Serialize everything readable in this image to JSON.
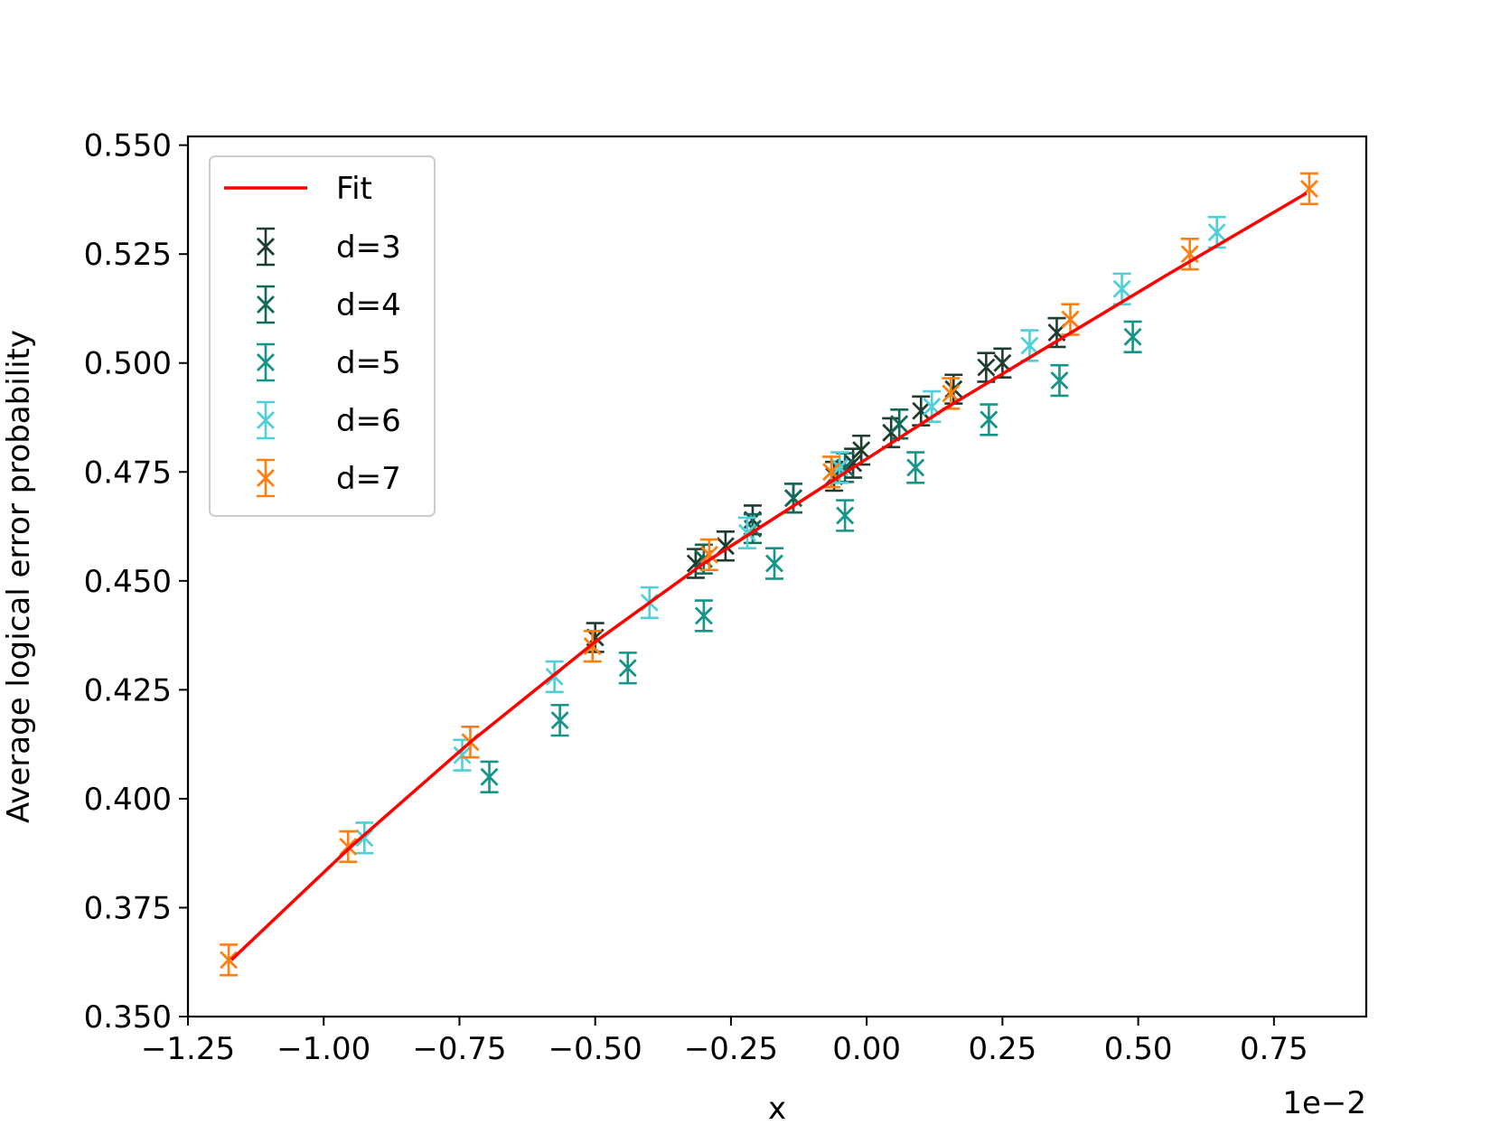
{
  "chart_data": {
    "type": "scatter",
    "xlabel": "x",
    "ylabel": "Average logical error probability",
    "x_offset_label": "1e−2",
    "xlim": [
      -1.25,
      0.92
    ],
    "ylim": [
      0.35,
      0.552
    ],
    "xticks": [
      -1.25,
      -1.0,
      -0.75,
      -0.5,
      -0.25,
      0.0,
      0.25,
      0.5,
      0.75
    ],
    "xtick_labels": [
      "−1.25",
      "−1.00",
      "−0.75",
      "−0.50",
      "−0.25",
      "0.00",
      "0.25",
      "0.50",
      "0.75"
    ],
    "yticks": [
      0.35,
      0.375,
      0.4,
      0.425,
      0.45,
      0.475,
      0.5,
      0.525,
      0.55
    ],
    "ytick_labels": [
      "0.350",
      "0.375",
      "0.400",
      "0.425",
      "0.450",
      "0.475",
      "0.500",
      "0.525",
      "0.550"
    ],
    "grid": false,
    "legend_position": "top-left",
    "fit": {
      "name": "Fit",
      "color": "#ff0000",
      "x": [
        -1.17,
        -0.95,
        -0.73,
        -0.5,
        -0.3,
        -0.1,
        0.0,
        0.15,
        0.35,
        0.55,
        0.81
      ],
      "y": [
        0.363,
        0.389,
        0.413,
        0.436,
        0.454,
        0.47,
        0.478,
        0.49,
        0.505,
        0.52,
        0.539
      ]
    },
    "series": [
      {
        "name": "d=3",
        "color": "#1f3d2f",
        "err": 0.0033,
        "x": [
          -0.5,
          -0.315,
          -0.26,
          -0.21,
          -0.135,
          -0.06,
          -0.025,
          -0.01,
          0.045,
          0.1,
          0.16,
          0.22,
          0.25,
          0.35
        ],
        "y": [
          0.437,
          0.454,
          0.458,
          0.464,
          0.469,
          0.474,
          0.477,
          0.48,
          0.484,
          0.489,
          0.494,
          0.499,
          0.5,
          0.507
        ]
      },
      {
        "name": "d=4",
        "color": "#116a58",
        "err": 0.0033,
        "x": [
          -0.3,
          -0.21,
          -0.135,
          -0.04,
          0.06
        ],
        "y": [
          0.455,
          0.462,
          0.469,
          0.476,
          0.486
        ]
      },
      {
        "name": "d=5",
        "color": "#159488",
        "err": 0.0035,
        "x": [
          -0.695,
          -0.565,
          -0.44,
          -0.3,
          -0.17,
          -0.04,
          0.09,
          0.225,
          0.355,
          0.49
        ],
        "y": [
          0.405,
          0.418,
          0.43,
          0.442,
          0.454,
          0.465,
          0.476,
          0.487,
          0.496,
          0.506
        ]
      },
      {
        "name": "d=6",
        "color": "#4fcfd8",
        "err": 0.0035,
        "x": [
          -0.925,
          -0.745,
          -0.575,
          -0.4,
          -0.22,
          -0.05,
          0.12,
          0.3,
          0.47,
          0.645
        ],
        "y": [
          0.391,
          0.41,
          0.428,
          0.445,
          0.461,
          0.476,
          0.49,
          0.504,
          0.517,
          0.53
        ]
      },
      {
        "name": "d=7",
        "color": "#ff7f0e",
        "err": 0.0035,
        "x": [
          -1.175,
          -0.955,
          -0.73,
          -0.505,
          -0.29,
          -0.065,
          0.155,
          0.375,
          0.595,
          0.815
        ],
        "y": [
          0.363,
          0.389,
          0.413,
          0.435,
          0.456,
          0.475,
          0.493,
          0.51,
          0.525,
          0.54
        ]
      }
    ]
  }
}
